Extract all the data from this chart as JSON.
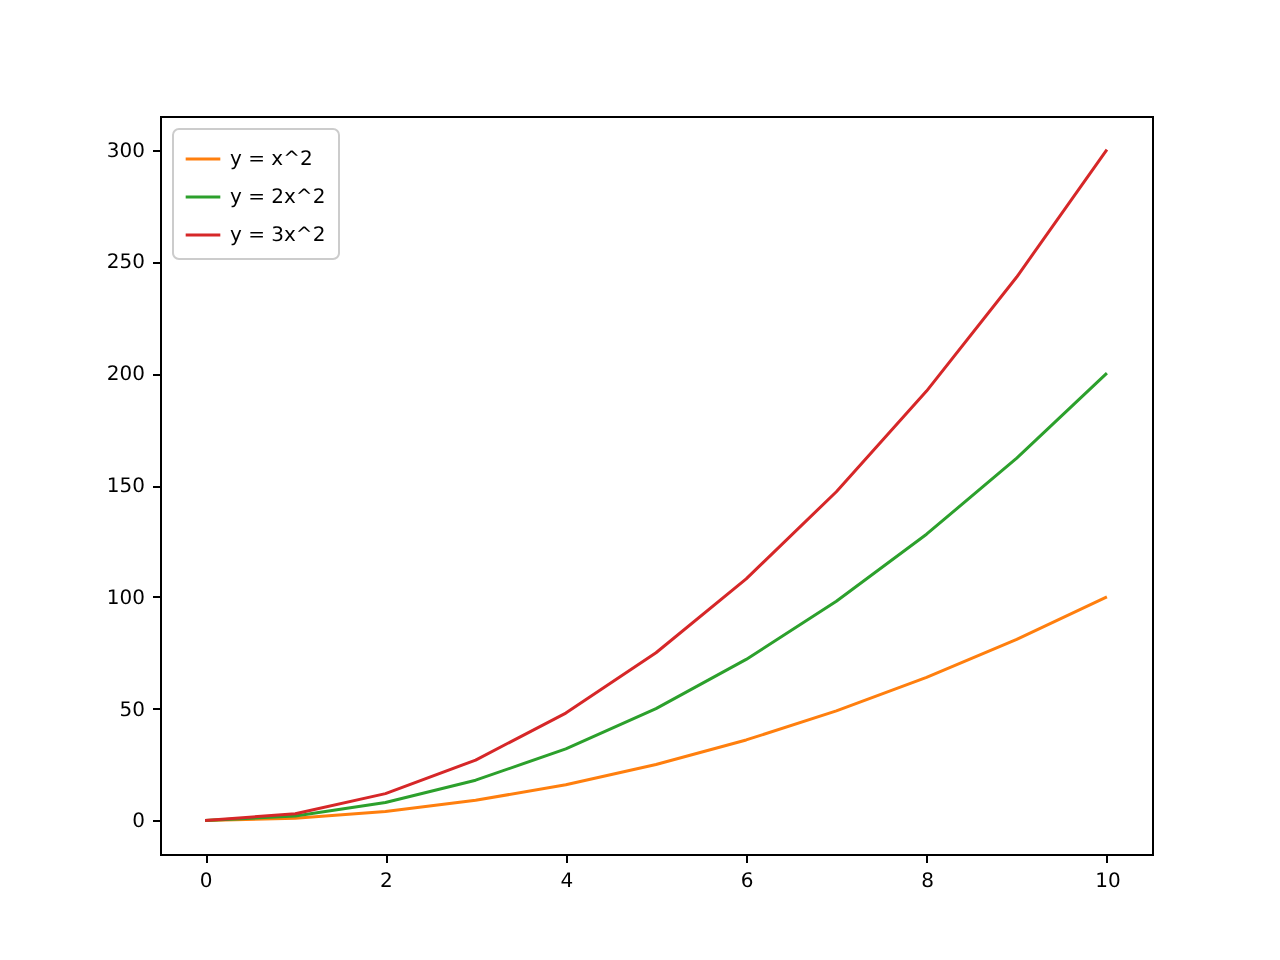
{
  "chart_data": {
    "type": "line",
    "x": [
      0,
      1,
      2,
      3,
      4,
      5,
      6,
      7,
      8,
      9,
      10
    ],
    "series": [
      {
        "name": "y = x^2",
        "color": "#ff7f0e",
        "values": [
          0,
          1,
          4,
          9,
          16,
          25,
          36,
          49,
          64,
          81,
          100
        ]
      },
      {
        "name": "y = 2x^2",
        "color": "#2ca02c",
        "values": [
          0,
          2,
          8,
          18,
          32,
          50,
          72,
          98,
          128,
          162,
          200
        ]
      },
      {
        "name": "y = 3x^2",
        "color": "#d62728",
        "values": [
          0,
          3,
          12,
          27,
          48,
          75,
          108,
          147,
          192,
          243,
          300
        ]
      }
    ],
    "xlim": [
      -0.5,
      10.5
    ],
    "xticks": [
      0,
      2,
      4,
      6,
      8,
      10
    ],
    "ylim": [
      -15,
      315
    ],
    "yticks": [
      0,
      50,
      100,
      150,
      200,
      250,
      300
    ],
    "legend": "top left",
    "grid": false,
    "marker": "none",
    "line_style": "solid"
  }
}
